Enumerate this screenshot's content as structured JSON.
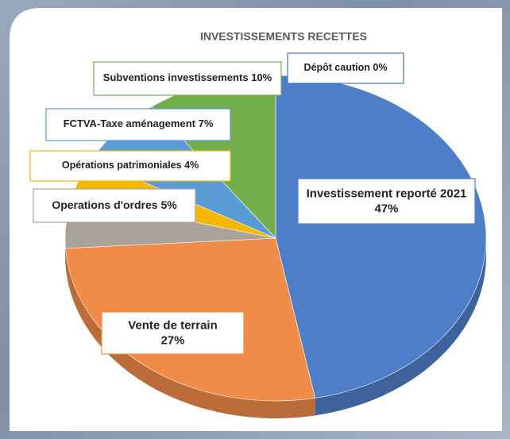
{
  "chart_data": {
    "type": "pie3d",
    "title": "INVESTISSEMENTS RECETTES",
    "categories": [
      "Investissement reporté 2021",
      "Vente de terrain",
      "Operations d'ordres",
      "Opérations patrimoniales",
      "FCTVA-Taxe aménagement",
      "Subventions investissements",
      "Dépôt caution"
    ],
    "values": [
      47,
      27,
      5,
      4,
      7,
      10,
      0
    ],
    "value_labels": [
      "47%",
      "27%",
      "5%",
      "4%",
      "7%",
      "10%",
      "0%"
    ],
    "colors": [
      "#4f7ec8",
      "#f08b48",
      "#a9a39a",
      "#f5b800",
      "#5b9bd5",
      "#72ae4c",
      "#4472c4"
    ]
  }
}
